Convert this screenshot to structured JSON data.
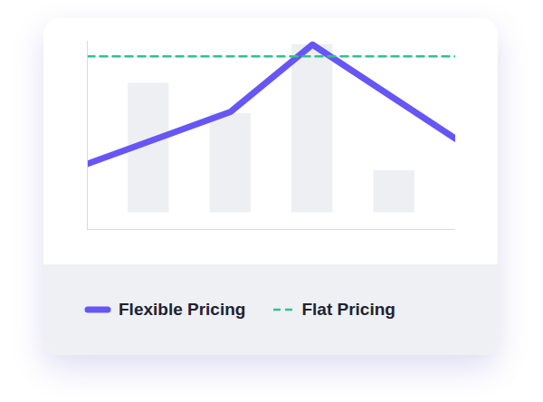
{
  "chart_data": {
    "type": "line",
    "series": [
      {
        "type": "bar",
        "color": "#eeeff2",
        "x": [
          1,
          2,
          3,
          4
        ],
        "values": [
          77,
          59,
          100,
          25
        ]
      },
      {
        "name": "Flexible Pricing",
        "type": "line",
        "line_style": "solid",
        "color": "#6656f6",
        "x": [
          0.25,
          2,
          3,
          4.75
        ],
        "values": [
          29,
          60,
          100,
          44
        ]
      },
      {
        "name": "Flat Pricing",
        "type": "line",
        "line_style": "dashed",
        "color": "#2fc28c",
        "x": [
          0.25,
          4.75
        ],
        "values": [
          93,
          93
        ]
      }
    ],
    "xlim": [
      0.25,
      4.75
    ],
    "xticks": [],
    "ylim": [
      -10,
      102
    ],
    "yticks": [],
    "tick_labels": false,
    "grid": false,
    "legend": "bottom"
  }
}
